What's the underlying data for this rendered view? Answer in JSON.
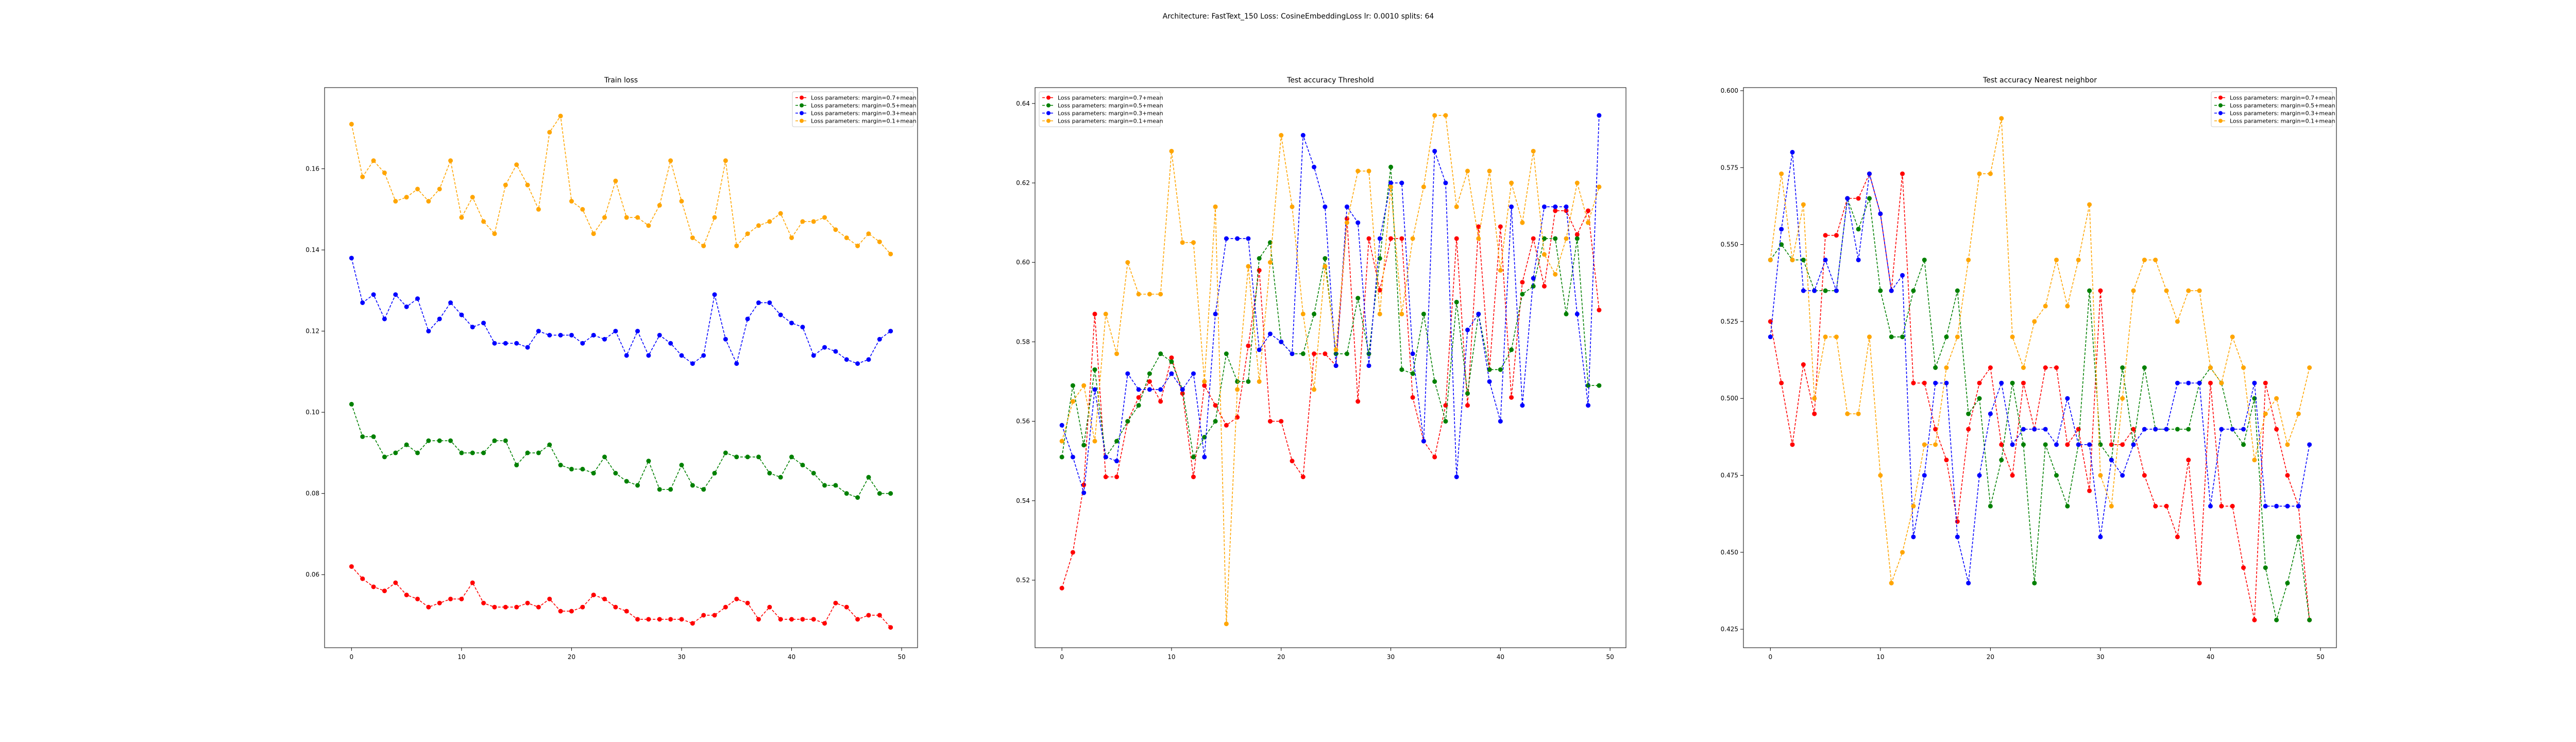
{
  "title": "Architecture: FastText_150 Loss: CosineEmbeddingLoss lr: 0.0010 splits: 64",
  "chart_data": [
    {
      "type": "line",
      "title": "Train loss",
      "legend": "upper right",
      "x": [
        0,
        1,
        2,
        3,
        4,
        5,
        6,
        7,
        8,
        9,
        10,
        11,
        12,
        13,
        14,
        15,
        16,
        17,
        18,
        19,
        20,
        21,
        22,
        23,
        24,
        25,
        26,
        27,
        28,
        29,
        30,
        31,
        32,
        33,
        34,
        35,
        36,
        37,
        38,
        39,
        40,
        41,
        42,
        43,
        44,
        45,
        46,
        47,
        48,
        49
      ],
      "xlim": [
        -2.45,
        51.45
      ],
      "xticks": [
        0,
        10,
        20,
        30,
        40,
        50
      ],
      "ylim": [
        0.042,
        0.18
      ],
      "yticks": [
        0.06,
        0.08,
        {
          "value": 0.1,
          "label": "0.10"
        },
        0.12,
        0.14,
        0.16
      ],
      "series": [
        {
          "name": "Loss parameters: margin=0.7+mean",
          "color": "#ff0000",
          "values": [
            0.062,
            0.059,
            0.057,
            0.056,
            0.058,
            0.055,
            0.054,
            0.052,
            0.053,
            0.054,
            0.054,
            0.058,
            0.053,
            0.052,
            0.052,
            0.052,
            0.053,
            0.052,
            0.054,
            0.051,
            0.051,
            0.052,
            0.055,
            0.054,
            0.052,
            0.051,
            0.049,
            0.049,
            0.049,
            0.049,
            0.049,
            0.048,
            0.05,
            0.05,
            0.052,
            0.054,
            0.053,
            0.049,
            0.052,
            0.049,
            0.049,
            0.049,
            0.049,
            0.048,
            0.053,
            0.052,
            0.049,
            0.05,
            0.05,
            0.047
          ]
        },
        {
          "name": "Loss parameters: margin=0.5+mean",
          "color": "#008000",
          "values": [
            0.102,
            0.094,
            0.094,
            0.089,
            0.09,
            0.092,
            0.09,
            0.093,
            0.093,
            0.093,
            0.09,
            0.09,
            0.09,
            0.093,
            0.093,
            0.087,
            0.09,
            0.09,
            0.092,
            0.087,
            0.086,
            0.086,
            0.085,
            0.089,
            0.085,
            0.083,
            0.082,
            0.088,
            0.081,
            0.081,
            0.087,
            0.082,
            0.081,
            0.085,
            0.09,
            0.089,
            0.089,
            0.089,
            0.085,
            0.084,
            0.089,
            0.087,
            0.085,
            0.082,
            0.082,
            0.08,
            0.079,
            0.084,
            0.08,
            0.08
          ]
        },
        {
          "name": "Loss parameters: margin=0.3+mean",
          "color": "#0000ff",
          "values": [
            0.138,
            0.127,
            0.129,
            0.123,
            0.129,
            0.126,
            0.128,
            0.12,
            0.123,
            0.127,
            0.124,
            0.121,
            0.122,
            0.117,
            0.117,
            0.117,
            0.116,
            0.12,
            0.119,
            0.119,
            0.119,
            0.117,
            0.119,
            0.118,
            0.12,
            0.114,
            0.12,
            0.114,
            0.119,
            0.117,
            0.114,
            0.112,
            0.114,
            0.129,
            0.118,
            0.112,
            0.123,
            0.127,
            0.127,
            0.124,
            0.122,
            0.121,
            0.114,
            0.116,
            0.115,
            0.113,
            0.112,
            0.113,
            0.118,
            0.12
          ]
        },
        {
          "name": "Loss parameters: margin=0.1+mean",
          "color": "#ffa500",
          "values": [
            0.171,
            0.158,
            0.162,
            0.159,
            0.152,
            0.153,
            0.155,
            0.152,
            0.155,
            0.162,
            0.148,
            0.153,
            0.147,
            0.144,
            0.156,
            0.161,
            0.156,
            0.15,
            0.169,
            0.173,
            0.152,
            0.15,
            0.144,
            0.148,
            0.157,
            0.148,
            0.148,
            0.146,
            0.151,
            0.162,
            0.152,
            0.143,
            0.141,
            0.148,
            0.162,
            0.141,
            0.144,
            0.146,
            0.147,
            0.149,
            0.143,
            0.147,
            0.147,
            0.148,
            0.145,
            0.143,
            0.141,
            0.144,
            0.142,
            0.139
          ]
        }
      ]
    },
    {
      "type": "line",
      "title": "Test accuracy Threshold",
      "legend": "upper left",
      "x": [
        0,
        1,
        2,
        3,
        4,
        5,
        6,
        7,
        8,
        9,
        10,
        11,
        12,
        13,
        14,
        15,
        16,
        17,
        18,
        19,
        20,
        21,
        22,
        23,
        24,
        25,
        26,
        27,
        28,
        29,
        30,
        31,
        32,
        33,
        34,
        35,
        36,
        37,
        38,
        39,
        40,
        41,
        42,
        43,
        44,
        45,
        46,
        47,
        48,
        49
      ],
      "xlim": [
        -2.45,
        51.45
      ],
      "xticks": [
        0,
        10,
        20,
        30,
        40,
        50
      ],
      "ylim": [
        0.503,
        0.644
      ],
      "yticks": [
        0.52,
        0.54,
        0.56,
        0.58,
        {
          "value": 0.6,
          "label": "0.60"
        },
        0.62,
        0.64
      ],
      "series": [
        {
          "name": "Loss parameters: margin=0.7+mean",
          "color": "#ff0000",
          "values": [
            0.518,
            0.527,
            0.544,
            0.587,
            0.546,
            0.546,
            0.56,
            0.566,
            0.57,
            0.565,
            0.576,
            0.567,
            0.546,
            0.569,
            0.564,
            0.559,
            0.561,
            0.579,
            0.598,
            0.56,
            0.56,
            0.55,
            0.546,
            0.577,
            0.577,
            0.574,
            0.611,
            0.565,
            0.606,
            0.593,
            0.606,
            0.606,
            0.566,
            0.555,
            0.551,
            0.564,
            0.606,
            0.564,
            0.609,
            0.573,
            0.609,
            0.566,
            0.595,
            0.606,
            0.594,
            0.613,
            0.613,
            0.607,
            0.613,
            0.588
          ]
        },
        {
          "name": "Loss parameters: margin=0.5+mean",
          "color": "#008000",
          "values": [
            0.551,
            0.569,
            0.554,
            0.573,
            0.551,
            0.555,
            0.56,
            0.564,
            0.572,
            0.577,
            0.575,
            0.568,
            0.551,
            0.556,
            0.56,
            0.577,
            0.57,
            0.57,
            0.601,
            0.605,
            0.58,
            0.577,
            0.577,
            0.587,
            0.601,
            0.577,
            0.577,
            0.591,
            0.577,
            0.601,
            0.624,
            0.573,
            0.572,
            0.587,
            0.57,
            0.56,
            0.59,
            0.567,
            0.587,
            0.573,
            0.573,
            0.578,
            0.592,
            0.594,
            0.606,
            0.606,
            0.587,
            0.606,
            0.569,
            0.569
          ]
        },
        {
          "name": "Loss parameters: margin=0.3+mean",
          "color": "#0000ff",
          "values": [
            0.559,
            0.551,
            0.542,
            0.568,
            0.551,
            0.55,
            0.572,
            0.568,
            0.568,
            0.568,
            0.572,
            0.568,
            0.572,
            0.551,
            0.587,
            0.606,
            0.606,
            0.606,
            0.578,
            0.582,
            0.58,
            0.577,
            0.632,
            0.624,
            0.614,
            0.574,
            0.614,
            0.61,
            0.574,
            0.606,
            0.62,
            0.62,
            0.577,
            0.555,
            0.628,
            0.62,
            0.546,
            0.583,
            0.587,
            0.57,
            0.56,
            0.614,
            0.564,
            0.596,
            0.614,
            0.614,
            0.614,
            0.587,
            0.564,
            0.637
          ]
        },
        {
          "name": "Loss parameters: margin=0.1+mean",
          "color": "#ffa500",
          "values": [
            0.555,
            0.565,
            0.569,
            0.555,
            0.587,
            0.577,
            0.6,
            0.592,
            0.592,
            0.592,
            0.628,
            0.605,
            0.605,
            0.57,
            0.614,
            0.509,
            0.568,
            0.599,
            0.57,
            0.6,
            0.632,
            0.614,
            0.587,
            0.568,
            0.599,
            0.578,
            0.61,
            0.623,
            0.623,
            0.587,
            0.619,
            0.587,
            0.606,
            0.619,
            0.637,
            0.637,
            0.614,
            0.623,
            0.606,
            0.623,
            0.598,
            0.62,
            0.61,
            0.628,
            0.602,
            0.597,
            0.606,
            0.62,
            0.61,
            0.619
          ]
        }
      ]
    },
    {
      "type": "line",
      "title": "Test accuracy Nearest neighbor",
      "legend": "upper right",
      "x": [
        0,
        1,
        2,
        3,
        4,
        5,
        6,
        7,
        8,
        9,
        10,
        11,
        12,
        13,
        14,
        15,
        16,
        17,
        18,
        19,
        20,
        21,
        22,
        23,
        24,
        25,
        26,
        27,
        28,
        29,
        30,
        31,
        32,
        33,
        34,
        35,
        36,
        37,
        38,
        39,
        40,
        41,
        42,
        43,
        44,
        45,
        46,
        47,
        48,
        49
      ],
      "xlim": [
        -2.45,
        51.45
      ],
      "xticks": [
        0,
        10,
        20,
        30,
        40,
        50
      ],
      "ylim": [
        0.419,
        0.601
      ],
      "yticks": [
        0.425,
        {
          "value": 0.45,
          "label": "0.450"
        },
        0.475,
        {
          "value": 0.5,
          "label": "0.500"
        },
        0.525,
        {
          "value": 0.55,
          "label": "0.550"
        },
        0.575,
        {
          "value": 0.6,
          "label": "0.600"
        }
      ],
      "series": [
        {
          "name": "Loss parameters: margin=0.7+mean",
          "color": "#ff0000",
          "values": [
            0.525,
            0.505,
            0.485,
            0.511,
            0.495,
            0.553,
            0.553,
            0.565,
            0.565,
            0.573,
            0.56,
            0.535,
            0.573,
            0.505,
            0.505,
            0.49,
            0.48,
            0.46,
            0.49,
            0.505,
            0.51,
            0.485,
            0.475,
            0.505,
            0.49,
            0.51,
            0.51,
            0.485,
            0.49,
            0.47,
            0.535,
            0.485,
            0.485,
            0.49,
            0.475,
            0.465,
            0.465,
            0.455,
            0.48,
            0.44,
            0.505,
            0.465,
            0.465,
            0.445,
            0.428,
            0.505,
            0.49,
            0.475,
            0.465,
            0.428
          ]
        },
        {
          "name": "Loss parameters: margin=0.5+mean",
          "color": "#008000",
          "values": [
            0.545,
            0.55,
            0.545,
            0.545,
            0.535,
            0.535,
            0.535,
            0.565,
            0.555,
            0.565,
            0.535,
            0.52,
            0.52,
            0.535,
            0.545,
            0.51,
            0.52,
            0.535,
            0.495,
            0.5,
            0.465,
            0.48,
            0.505,
            0.485,
            0.44,
            0.485,
            0.475,
            0.465,
            0.485,
            0.535,
            0.485,
            0.48,
            0.51,
            0.485,
            0.51,
            0.49,
            0.49,
            0.49,
            0.49,
            0.505,
            0.51,
            0.505,
            0.49,
            0.485,
            0.5,
            0.445,
            0.428,
            0.44,
            0.455,
            0.428
          ]
        },
        {
          "name": "Loss parameters: margin=0.3+mean",
          "color": "#0000ff",
          "values": [
            0.52,
            0.555,
            0.58,
            0.535,
            0.535,
            0.545,
            0.535,
            0.565,
            0.545,
            0.573,
            0.56,
            0.535,
            0.54,
            0.455,
            0.475,
            0.505,
            0.505,
            0.455,
            0.44,
            0.475,
            0.495,
            0.505,
            0.485,
            0.49,
            0.49,
            0.49,
            0.485,
            0.5,
            0.485,
            0.485,
            0.455,
            0.48,
            0.475,
            0.485,
            0.49,
            0.49,
            0.49,
            0.505,
            0.505,
            0.505,
            0.465,
            0.49,
            0.49,
            0.49,
            0.505,
            0.465,
            0.465,
            0.465,
            0.465,
            0.485
          ]
        },
        {
          "name": "Loss parameters: margin=0.1+mean",
          "color": "#ffa500",
          "values": [
            0.545,
            0.573,
            0.545,
            0.563,
            0.5,
            0.52,
            0.52,
            0.495,
            0.495,
            0.52,
            0.475,
            0.44,
            0.45,
            0.465,
            0.485,
            0.485,
            0.51,
            0.52,
            0.545,
            0.573,
            0.573,
            0.591,
            0.52,
            0.51,
            0.525,
            0.53,
            0.545,
            0.53,
            0.545,
            0.563,
            0.475,
            0.465,
            0.5,
            0.535,
            0.545,
            0.545,
            0.535,
            0.525,
            0.535,
            0.535,
            0.51,
            0.505,
            0.52,
            0.51,
            0.48,
            0.495,
            0.5,
            0.485,
            0.495,
            0.51
          ]
        }
      ]
    }
  ]
}
